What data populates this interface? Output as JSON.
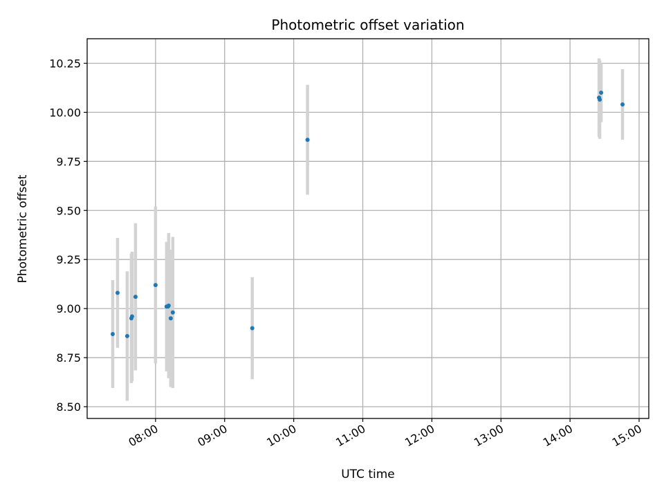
{
  "chart_data": {
    "type": "scatter",
    "title": "Photometric offset variation",
    "xlabel": "UTC time",
    "ylabel": "Photometric offset",
    "x_unit": "hours UTC",
    "xlim": [
      7.01,
      15.14
    ],
    "ylim": [
      8.44,
      10.375
    ],
    "x_ticks": [
      8,
      9,
      10,
      11,
      12,
      13,
      14,
      15
    ],
    "x_tick_labels": [
      "08:00",
      "09:00",
      "10:00",
      "11:00",
      "12:00",
      "13:00",
      "14:00",
      "15:00"
    ],
    "y_ticks": [
      8.5,
      8.75,
      9.0,
      9.25,
      9.5,
      9.75,
      10.0,
      10.25
    ],
    "y_tick_labels": [
      "8.50",
      "8.75",
      "9.00",
      "9.25",
      "9.50",
      "9.75",
      "10.00",
      "10.25"
    ],
    "grid": true,
    "colors": {
      "marker": "#1f77b4",
      "errorbar": "#d3d3d3",
      "grid": "#b0b0b0"
    },
    "series": [
      {
        "points": [
          {
            "time": "07:23",
            "x": 7.38,
            "y": 8.87,
            "yerr": 0.275
          },
          {
            "time": "07:27",
            "x": 7.45,
            "y": 9.08,
            "yerr": 0.28
          },
          {
            "time": "07:36",
            "x": 7.59,
            "y": 8.86,
            "yerr": 0.33
          },
          {
            "time": "07:39",
            "x": 7.65,
            "y": 8.95,
            "yerr": 0.33
          },
          {
            "time": "07:40",
            "x": 7.66,
            "y": 8.96,
            "yerr": 0.33
          },
          {
            "time": "07:42",
            "x": 7.71,
            "y": 9.06,
            "yerr": 0.375
          },
          {
            "time": "08:00",
            "x": 8.0,
            "y": 9.12,
            "yerr": 0.4
          },
          {
            "time": "08:10",
            "x": 8.16,
            "y": 9.01,
            "yerr": 0.33
          },
          {
            "time": "08:11",
            "x": 8.18,
            "y": 9.01,
            "yerr": 0.33
          },
          {
            "time": "08:12",
            "x": 8.19,
            "y": 9.015,
            "yerr": 0.37
          },
          {
            "time": "08:13",
            "x": 8.22,
            "y": 8.95,
            "yerr": 0.35
          },
          {
            "time": "08:15",
            "x": 8.25,
            "y": 8.98,
            "yerr": 0.385
          },
          {
            "time": "09:24",
            "x": 9.4,
            "y": 8.9,
            "yerr": 0.26
          },
          {
            "time": "10:12",
            "x": 10.2,
            "y": 9.86,
            "yerr": 0.28
          },
          {
            "time": "14:25",
            "x": 14.42,
            "y": 10.075,
            "yerr": 0.2
          },
          {
            "time": "14:26",
            "x": 14.43,
            "y": 10.065,
            "yerr": 0.2
          },
          {
            "time": "14:27",
            "x": 14.45,
            "y": 10.1,
            "yerr": 0.15
          },
          {
            "time": "14:46",
            "x": 14.76,
            "y": 10.04,
            "yerr": 0.18
          }
        ]
      }
    ]
  }
}
